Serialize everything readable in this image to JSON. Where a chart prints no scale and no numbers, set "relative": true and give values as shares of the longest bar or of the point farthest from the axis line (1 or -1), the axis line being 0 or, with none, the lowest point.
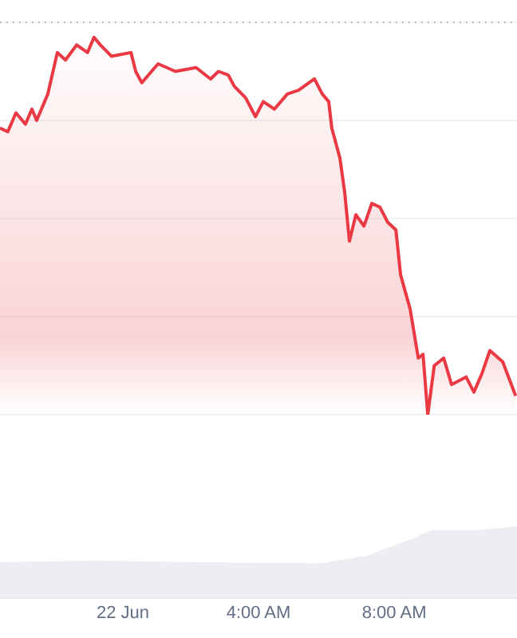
{
  "chart_data": [
    {
      "type": "area",
      "relative": true,
      "grid": "y",
      "xlim": [
        -3.62,
        11.62
      ],
      "ref_lines": [
        {
          "axis": "y",
          "value": 1.04,
          "line_style": "dotted",
          "color": "#b8bcc6"
        }
      ],
      "series": [
        {
          "color": "#ea3943",
          "x": [
            -3.62,
            -3.39,
            -3.15,
            -2.87,
            -2.68,
            -2.54,
            -2.21,
            -1.93,
            -1.69,
            -1.36,
            -1.04,
            -0.85,
            -0.66,
            -0.33,
            0.24,
            0.38,
            0.56,
            1.04,
            1.55,
            2.16,
            2.59,
            2.82,
            3.11,
            3.29,
            3.62,
            3.91,
            4.14,
            4.47,
            4.85,
            5.18,
            5.65,
            5.88,
            6.07,
            6.16,
            6.4,
            6.54,
            6.68,
            6.87,
            7.11,
            7.34,
            7.58,
            7.81,
            8.05,
            8.19,
            8.47,
            8.71,
            8.85,
            8.99,
            9.18,
            9.46,
            9.69,
            10.12,
            10.35,
            10.59,
            10.82,
            11.2,
            11.58
          ],
          "values": [
            0.76,
            0.75,
            0.8,
            0.77,
            0.81,
            0.78,
            0.85,
            0.96,
            0.94,
            0.98,
            0.96,
            1,
            0.98,
            0.95,
            0.96,
            0.91,
            0.88,
            0.93,
            0.91,
            0.92,
            0.89,
            0.91,
            0.9,
            0.87,
            0.84,
            0.79,
            0.83,
            0.81,
            0.85,
            0.86,
            0.89,
            0.85,
            0.83,
            0.76,
            0.68,
            0.59,
            0.46,
            0.53,
            0.5,
            0.56,
            0.55,
            0.51,
            0.49,
            0.37,
            0.28,
            0.15,
            0.16,
            0,
            0.13,
            0.15,
            0.08,
            0.1,
            0.06,
            0.11,
            0.17,
            0.14,
            0.05
          ]
        }
      ]
    },
    {
      "type": "area",
      "relative": true,
      "xlim": [
        -3.62,
        11.62
      ],
      "xticks": [
        {
          "value": 0,
          "label": "22 Jun"
        },
        {
          "value": 4,
          "label": "4:00 AM"
        },
        {
          "value": 8,
          "label": "8:00 AM"
        }
      ],
      "series": [
        {
          "color": "#eceef3",
          "x": [
            -3.62,
            -0.8,
            2,
            5.8,
            7.2,
            8.6,
            9.1,
            10.5,
            11.62
          ],
          "values": [
            0.5,
            0.52,
            0.5,
            0.48,
            0.59,
            0.84,
            0.95,
            0.95,
            1
          ]
        }
      ]
    }
  ]
}
